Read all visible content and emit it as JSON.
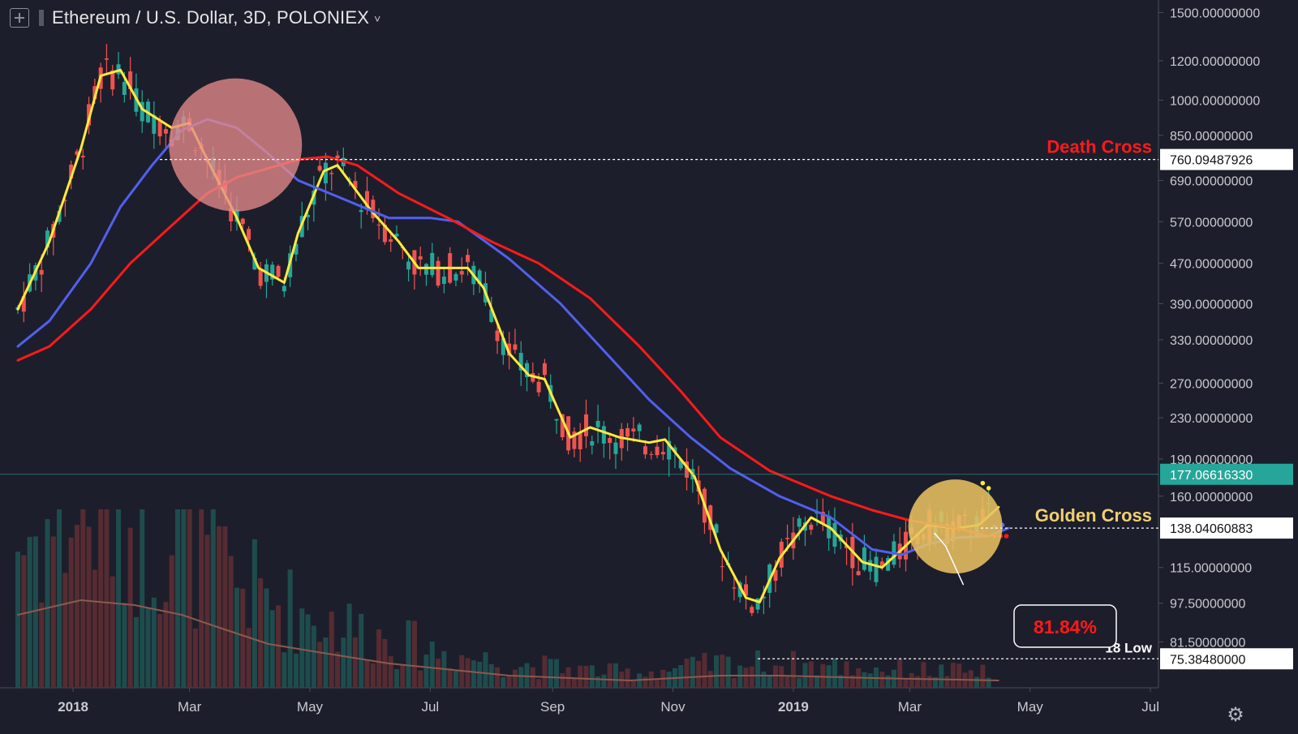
{
  "header": {
    "title": "Ethereum / U.S. Dollar, 3D, POLONIEX",
    "caret": "˅",
    "add_icon": "plus-square-icon"
  },
  "settings_icon": "gear-icon",
  "settings_glyph": "⚙",
  "chart_data": {
    "type": "candlestick",
    "symbol": "ETH/USD",
    "interval": "3D",
    "exchange": "POLONIEX",
    "y_scale": "log",
    "ylim": [
      70,
      1520
    ],
    "y_ticks": [
      {
        "value": 1500,
        "label": "1500.00000000"
      },
      {
        "value": 1200,
        "label": "1200.00000000"
      },
      {
        "value": 1000,
        "label": "1000.00000000"
      },
      {
        "value": 850,
        "label": "850.00000000"
      },
      {
        "value": 690,
        "label": "690.00000000"
      },
      {
        "value": 570,
        "label": "570.00000000"
      },
      {
        "value": 470,
        "label": "470.00000000"
      },
      {
        "value": 390,
        "label": "390.00000000"
      },
      {
        "value": 330,
        "label": "330.00000000"
      },
      {
        "value": 270,
        "label": "270.00000000"
      },
      {
        "value": 230,
        "label": "230.00000000"
      },
      {
        "value": 190,
        "label": "190.00000000"
      },
      {
        "value": 160,
        "label": "160.00000000"
      },
      {
        "value": 115,
        "label": "115.00000000"
      },
      {
        "value": 97.5,
        "label": "97.50000000"
      },
      {
        "value": 81.5,
        "label": "81.50000000"
      }
    ],
    "x_ticks": [
      {
        "date": "2018-01-01",
        "label": "2018",
        "bold": true
      },
      {
        "date": "2018-03-01",
        "label": "Mar"
      },
      {
        "date": "2018-05-01",
        "label": "May"
      },
      {
        "date": "2018-07-01",
        "label": "Jul"
      },
      {
        "date": "2018-09-01",
        "label": "Sep"
      },
      {
        "date": "2018-11-01",
        "label": "Nov"
      },
      {
        "date": "2019-01-01",
        "label": "2019",
        "bold": true
      },
      {
        "date": "2019-03-01",
        "label": "Mar"
      },
      {
        "date": "2019-05-01",
        "label": "May"
      },
      {
        "date": "2019-07-01",
        "label": "Jul"
      }
    ],
    "x_range": [
      "2017-12-04",
      "2019-07-10"
    ],
    "current_price": {
      "value": 177.0661633,
      "label": "177.06616330",
      "color": "#26a69a"
    },
    "price_markers": [
      {
        "value": 760.09487926,
        "label": "760.09487926",
        "text": "Death Cross",
        "text_color": "#ff1a1a",
        "from_date": "2018-02-14"
      },
      {
        "value": 138.04060883,
        "label": "138.04060883",
        "text": "Golden Cross",
        "text_color": "#f0d070",
        "from_date": "2019-04-06"
      },
      {
        "value": 75.3848,
        "label": "75.38480000",
        "text": "'18 Low",
        "text_color": "#ffffff",
        "from_date": "2018-12-14"
      }
    ],
    "annotations": [
      {
        "type": "circle",
        "date": "2018-03-21",
        "value": 760,
        "fill": "#e48a8a",
        "name": "Death Cross"
      },
      {
        "type": "circle",
        "date": "2019-03-20",
        "value": 138,
        "fill": "#e7c061",
        "name": "Golden Cross"
      },
      {
        "type": "label-box",
        "text": "81.84%",
        "color": "#ff1a1a"
      }
    ],
    "series": [
      {
        "kind": "ma",
        "color": "#ffeb3b",
        "points": [
          [
            "2017-12-04",
            380
          ],
          [
            "2017-12-20",
            520
          ],
          [
            "2018-01-05",
            800
          ],
          [
            "2018-01-15",
            1120
          ],
          [
            "2018-01-25",
            1150
          ],
          [
            "2018-02-05",
            960
          ],
          [
            "2018-02-20",
            880
          ],
          [
            "2018-03-01",
            900
          ],
          [
            "2018-03-10",
            760
          ],
          [
            "2018-03-25",
            580
          ],
          [
            "2018-04-05",
            460
          ],
          [
            "2018-04-18",
            430
          ],
          [
            "2018-04-25",
            540
          ],
          [
            "2018-05-08",
            720
          ],
          [
            "2018-05-15",
            740
          ],
          [
            "2018-06-01",
            600
          ],
          [
            "2018-06-15",
            520
          ],
          [
            "2018-06-25",
            460
          ],
          [
            "2018-07-05",
            460
          ],
          [
            "2018-07-20",
            460
          ],
          [
            "2018-07-28",
            420
          ],
          [
            "2018-08-10",
            310
          ],
          [
            "2018-08-20",
            280
          ],
          [
            "2018-08-28",
            275
          ],
          [
            "2018-09-10",
            210
          ],
          [
            "2018-09-20",
            220
          ],
          [
            "2018-10-05",
            210
          ],
          [
            "2018-10-20",
            205
          ],
          [
            "2018-10-28",
            208
          ],
          [
            "2018-11-12",
            175
          ],
          [
            "2018-11-25",
            125
          ],
          [
            "2018-12-08",
            100
          ],
          [
            "2018-12-15",
            98
          ],
          [
            "2018-12-25",
            120
          ],
          [
            "2019-01-10",
            145
          ],
          [
            "2019-01-20",
            138
          ],
          [
            "2019-02-05",
            118
          ],
          [
            "2019-02-15",
            115
          ],
          [
            "2019-02-25",
            125
          ],
          [
            "2019-03-10",
            140
          ],
          [
            "2019-03-25",
            138
          ],
          [
            "2019-04-05",
            140
          ],
          [
            "2019-04-15",
            152
          ]
        ]
      },
      {
        "kind": "ma",
        "color": "#5060f0",
        "points": [
          [
            "2017-12-04",
            320
          ],
          [
            "2017-12-20",
            360
          ],
          [
            "2018-01-10",
            470
          ],
          [
            "2018-01-25",
            610
          ],
          [
            "2018-02-10",
            740
          ],
          [
            "2018-02-25",
            870
          ],
          [
            "2018-03-10",
            915
          ],
          [
            "2018-03-25",
            880
          ],
          [
            "2018-04-10",
            780
          ],
          [
            "2018-04-25",
            690
          ],
          [
            "2018-05-15",
            640
          ],
          [
            "2018-06-10",
            580
          ],
          [
            "2018-07-01",
            580
          ],
          [
            "2018-07-15",
            570
          ],
          [
            "2018-08-10",
            480
          ],
          [
            "2018-09-05",
            390
          ],
          [
            "2018-09-25",
            320
          ],
          [
            "2018-10-20",
            250
          ],
          [
            "2018-11-10",
            210
          ],
          [
            "2018-11-30",
            182
          ],
          [
            "2018-12-25",
            160
          ],
          [
            "2019-01-20",
            145
          ],
          [
            "2019-02-10",
            125
          ],
          [
            "2019-02-25",
            122
          ],
          [
            "2019-03-10",
            128
          ],
          [
            "2019-03-25",
            132
          ],
          [
            "2019-04-10",
            133
          ],
          [
            "2019-04-20",
            138
          ]
        ]
      },
      {
        "kind": "ma",
        "color": "#ff1a1a",
        "points": [
          [
            "2017-12-04",
            300
          ],
          [
            "2017-12-20",
            320
          ],
          [
            "2018-01-10",
            380
          ],
          [
            "2018-01-30",
            470
          ],
          [
            "2018-02-20",
            560
          ],
          [
            "2018-03-10",
            650
          ],
          [
            "2018-03-25",
            700
          ],
          [
            "2018-04-10",
            730
          ],
          [
            "2018-04-25",
            760
          ],
          [
            "2018-05-10",
            770
          ],
          [
            "2018-05-25",
            740
          ],
          [
            "2018-06-15",
            650
          ],
          [
            "2018-07-10",
            580
          ],
          [
            "2018-08-01",
            520
          ],
          [
            "2018-08-25",
            470
          ],
          [
            "2018-09-20",
            400
          ],
          [
            "2018-10-15",
            320
          ],
          [
            "2018-11-05",
            260
          ],
          [
            "2018-11-25",
            210
          ],
          [
            "2018-12-20",
            180
          ],
          [
            "2019-01-20",
            160
          ],
          [
            "2019-02-10",
            150
          ],
          [
            "2019-03-01",
            143
          ],
          [
            "2019-03-25",
            138
          ],
          [
            "2019-04-10",
            133
          ]
        ]
      },
      {
        "kind": "volume-ma",
        "color": "#8a5a4e",
        "points": [
          [
            "2017-12-04",
            0.3
          ],
          [
            "2018-01-05",
            0.36
          ],
          [
            "2018-02-01",
            0.34
          ],
          [
            "2018-02-25",
            0.3
          ],
          [
            "2018-03-15",
            0.25
          ],
          [
            "2018-04-10",
            0.18
          ],
          [
            "2018-05-10",
            0.14
          ],
          [
            "2018-06-10",
            0.1
          ],
          [
            "2018-08-10",
            0.05
          ],
          [
            "2018-10-10",
            0.03
          ],
          [
            "2018-11-25",
            0.05
          ],
          [
            "2018-12-25",
            0.05
          ],
          [
            "2019-02-10",
            0.04
          ],
          [
            "2019-04-15",
            0.03
          ]
        ]
      }
    ],
    "candles_note": "",
    "extension_dots": [
      {
        "date": "2019-04-07",
        "value": 170,
        "color": "#ffeb3b"
      },
      {
        "date": "2019-04-10",
        "value": 166,
        "color": "#ffeb3b"
      },
      {
        "date": "2019-04-13",
        "value": 133,
        "color": "#ff1a1a"
      },
      {
        "date": "2019-04-16",
        "value": 133,
        "color": "#ff1a1a"
      },
      {
        "date": "2019-04-19",
        "value": 133,
        "color": "#ff1a1a"
      },
      {
        "date": "2019-04-13",
        "value": 139,
        "color": "#5060f0"
      },
      {
        "date": "2019-04-17",
        "value": 140,
        "color": "#5060f0"
      }
    ],
    "colors": {
      "up": "#26a69a",
      "down": "#ef5350",
      "bg": "#1d1e2b",
      "axis_text": "#c8c9cf"
    }
  }
}
